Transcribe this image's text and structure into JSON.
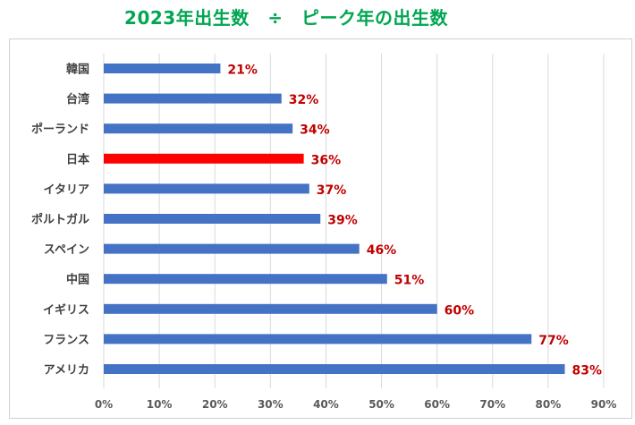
{
  "chart_data": {
    "type": "bar",
    "orientation": "horizontal",
    "title": "2023年出生数　÷　ピーク年の出生数",
    "xlabel": "",
    "ylabel": "",
    "xlim": [
      0,
      90
    ],
    "x_ticks": [
      "0%",
      "10%",
      "20%",
      "30%",
      "40%",
      "50%",
      "60%",
      "70%",
      "80%",
      "90%"
    ],
    "grid": true,
    "legend": "none",
    "categories": [
      "韓国",
      "台湾",
      "ポーランド",
      "日本",
      "イタリア",
      "ポルトガル",
      "スペイン",
      "中国",
      "イギリス",
      "フランス",
      "アメリカ"
    ],
    "values": [
      21,
      32,
      34,
      36,
      37,
      39,
      46,
      51,
      60,
      77,
      83
    ],
    "data_labels": [
      "21%",
      "32%",
      "34%",
      "36%",
      "37%",
      "39%",
      "46%",
      "51%",
      "60%",
      "77%",
      "83%"
    ],
    "highlight_category": "日本",
    "colors": {
      "bar": "#4472c4",
      "highlight_bar": "#ff0000",
      "data_label": "#c00000",
      "title": "#00a651",
      "gridline": "#d9d9d9"
    }
  }
}
